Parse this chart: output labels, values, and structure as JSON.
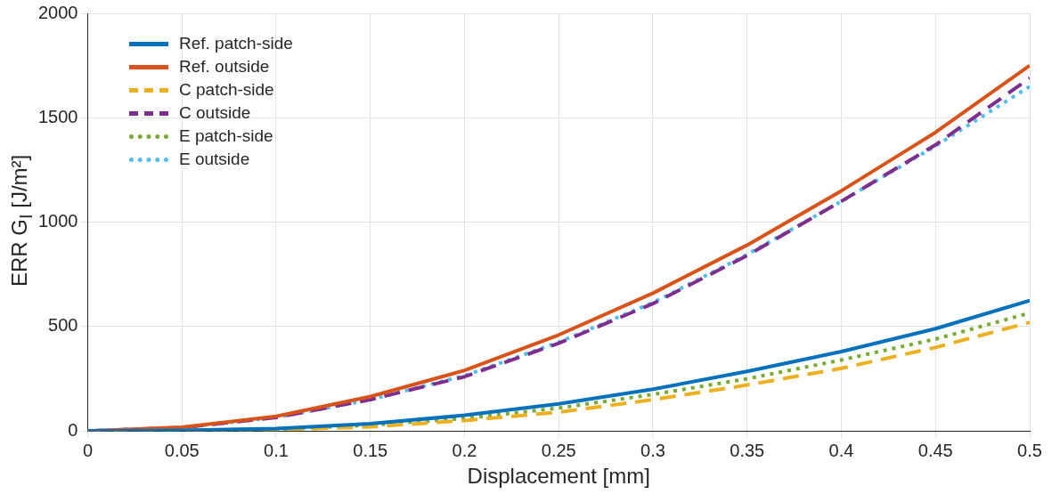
{
  "chart_data": {
    "type": "line",
    "xlabel": "Displacement [mm]",
    "ylabel": "ERR G$_{I}$ [J/m²]",
    "x": [
      0,
      0.05,
      0.1,
      0.15,
      0.2,
      0.25,
      0.3,
      0.35,
      0.4,
      0.45,
      0.5
    ],
    "xlim": [
      0,
      0.5
    ],
    "xticks": [
      0,
      0.05,
      0.1,
      0.15,
      0.2,
      0.25,
      0.3,
      0.35,
      0.4,
      0.45,
      0.5
    ],
    "ylim": [
      0,
      2000
    ],
    "yticks": [
      0,
      500,
      1000,
      1500,
      2000
    ],
    "grid": true,
    "legend": "top left",
    "marker": "none",
    "series": [
      {
        "name": "Ref. patch-side",
        "color": "#0072bd",
        "line_style": "solid",
        "values": [
          0,
          3,
          12,
          35,
          75,
          130,
          200,
          285,
          380,
          490,
          625
        ]
      },
      {
        "name": "Ref. outside",
        "color": "#d95319",
        "line_style": "solid",
        "values": [
          0,
          18,
          70,
          165,
          290,
          460,
          660,
          890,
          1150,
          1430,
          1750
        ]
      },
      {
        "name": "C patch-side",
        "color": "#edb120",
        "line_style": "dashed",
        "values": [
          0,
          1,
          5,
          20,
          50,
          90,
          150,
          220,
          300,
          400,
          520
        ]
      },
      {
        "name": "C outside",
        "color": "#7e2f8e",
        "line_style": "dashed",
        "values": [
          0,
          16,
          65,
          150,
          260,
          420,
          610,
          840,
          1100,
          1370,
          1690
        ]
      },
      {
        "name": "E patch-side",
        "color": "#77ac30",
        "line_style": "dotted",
        "values": [
          0,
          2,
          8,
          28,
          60,
          110,
          175,
          250,
          340,
          440,
          565
        ]
      },
      {
        "name": "E outside",
        "color": "#4dbeee",
        "line_style": "dotted",
        "values": [
          0,
          16,
          65,
          150,
          265,
          425,
          615,
          845,
          1100,
          1365,
          1650
        ]
      }
    ]
  }
}
